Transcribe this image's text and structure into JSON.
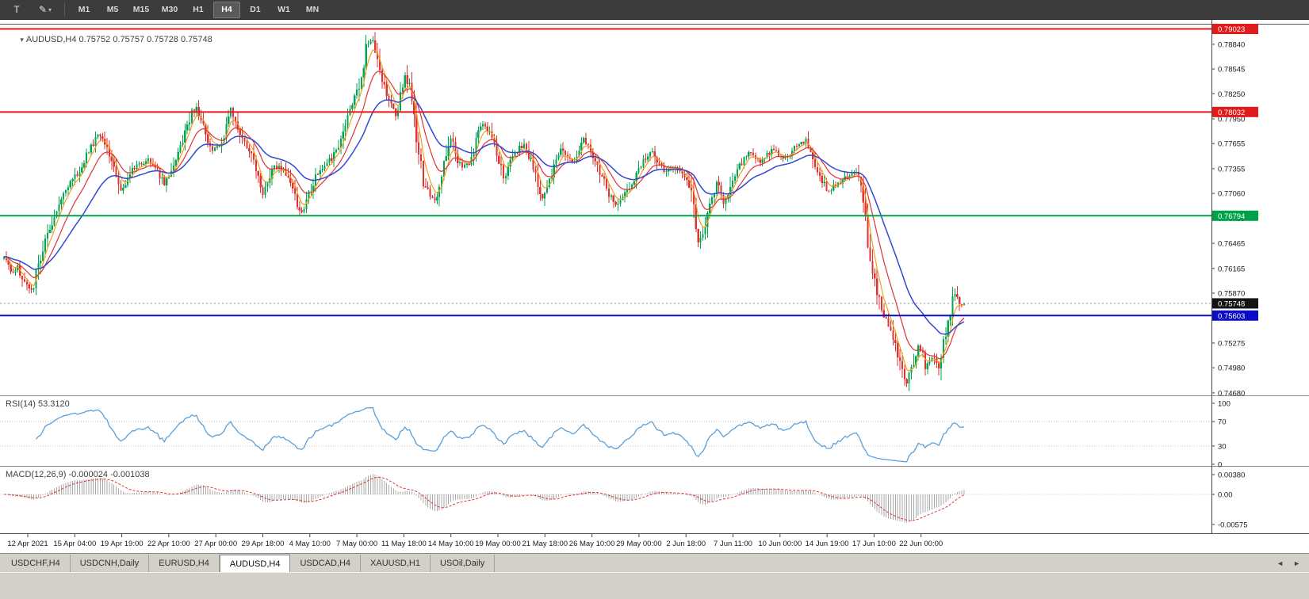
{
  "toolbar": {
    "tools": [
      {
        "name": "text-tool",
        "glyph": "T"
      },
      {
        "name": "draw-tool",
        "glyph": "✎",
        "caret": "▾"
      }
    ],
    "timeframes": [
      "M1",
      "M5",
      "M15",
      "M30",
      "H1",
      "H4",
      "D1",
      "W1",
      "MN"
    ],
    "active_timeframe": "H4"
  },
  "header": {
    "collapse_glyph": "▾",
    "symbol": "AUDUSD,H4",
    "ohlc": "0.75752 0.75757 0.75728 0.75748"
  },
  "chart_data": {
    "type": "candlestick",
    "symbol": "AUDUSD",
    "timeframe": "H4",
    "main": {
      "candle_count": 420,
      "price_min": 0.7466,
      "price_max": 0.79075,
      "bull_color": "#00a650",
      "bear_color": "#e03232",
      "y_ticks": [
        "0.78840",
        "0.78545",
        "0.78250",
        "0.77950",
        "0.77655",
        "0.77355",
        "0.77060",
        "0.76765",
        "0.76465",
        "0.76165",
        "0.75870",
        "0.75575",
        "0.75275",
        "0.74980",
        "0.74680"
      ],
      "levels": [
        {
          "price": 0.79023,
          "label": "0.79023",
          "color": "#e11b1b",
          "kind": "resistance"
        },
        {
          "price": 0.78032,
          "label": "0.78032",
          "color": "#e11b1b",
          "kind": "resistance"
        },
        {
          "price": 0.76794,
          "label": "0.76794",
          "color": "#00a14b",
          "kind": "support"
        },
        {
          "price": 0.75603,
          "label": "0.75603",
          "color": "#0c0cc4",
          "kind": "support"
        }
      ],
      "current_price": {
        "value": 0.75748,
        "label": "0.75748"
      },
      "moving_averages": [
        {
          "name": "fast",
          "period": 5,
          "color": "#f59e1b",
          "width": 1.2
        },
        {
          "name": "medium",
          "period": 13,
          "color": "#e03232",
          "width": 1.2
        },
        {
          "name": "slow",
          "period": 30,
          "color": "#2f49d0",
          "width": 1.5
        }
      ],
      "close_path": [
        [
          0,
          0.7628
        ],
        [
          4,
          0.7612
        ],
        [
          6,
          0.7618
        ],
        [
          9,
          0.76
        ],
        [
          12,
          0.7588
        ],
        [
          14,
          0.761
        ],
        [
          18,
          0.7652
        ],
        [
          22,
          0.768
        ],
        [
          25,
          0.77
        ],
        [
          29,
          0.7718
        ],
        [
          32,
          0.773
        ],
        [
          35,
          0.7745
        ],
        [
          38,
          0.7762
        ],
        [
          41,
          0.7776
        ],
        [
          44,
          0.7768
        ],
        [
          47,
          0.7745
        ],
        [
          51,
          0.7712
        ],
        [
          54,
          0.7722
        ],
        [
          56,
          0.7735
        ],
        [
          60,
          0.7742
        ],
        [
          63,
          0.7747
        ],
        [
          66,
          0.7738
        ],
        [
          70,
          0.7716
        ],
        [
          73,
          0.773
        ],
        [
          77,
          0.7762
        ],
        [
          80,
          0.7785
        ],
        [
          82,
          0.7802
        ],
        [
          84,
          0.7808
        ],
        [
          87,
          0.779
        ],
        [
          89,
          0.7768
        ],
        [
          91,
          0.7757
        ],
        [
          94,
          0.7762
        ],
        [
          96,
          0.7772
        ],
        [
          99,
          0.7808
        ],
        [
          101,
          0.7795
        ],
        [
          103,
          0.778
        ],
        [
          106,
          0.7762
        ],
        [
          108,
          0.7752
        ],
        [
          111,
          0.7725
        ],
        [
          113,
          0.7706
        ],
        [
          116,
          0.7726
        ],
        [
          118,
          0.774
        ],
        [
          121,
          0.7735
        ],
        [
          123,
          0.773
        ],
        [
          126,
          0.7712
        ],
        [
          128,
          0.7694
        ],
        [
          130,
          0.7683
        ],
        [
          133,
          0.7706
        ],
        [
          136,
          0.7726
        ],
        [
          139,
          0.7735
        ],
        [
          141,
          0.7741
        ],
        [
          144,
          0.7752
        ],
        [
          146,
          0.7762
        ],
        [
          149,
          0.7788
        ],
        [
          151,
          0.7802
        ],
        [
          153,
          0.7818
        ],
        [
          155,
          0.7832
        ],
        [
          157,
          0.7862
        ],
        [
          158,
          0.788
        ],
        [
          160,
          0.7888
        ],
        [
          161,
          0.7885
        ],
        [
          163,
          0.7862
        ],
        [
          164,
          0.7848
        ],
        [
          166,
          0.7832
        ],
        [
          168,
          0.782
        ],
        [
          171,
          0.78
        ],
        [
          173,
          0.7824
        ],
        [
          175,
          0.7848
        ],
        [
          177,
          0.783
        ],
        [
          179,
          0.7792
        ],
        [
          181,
          0.776
        ],
        [
          183,
          0.7722
        ],
        [
          186,
          0.7702
        ],
        [
          188,
          0.7698
        ],
        [
          191,
          0.7726
        ],
        [
          193,
          0.7752
        ],
        [
          195,
          0.777
        ],
        [
          198,
          0.7746
        ],
        [
          200,
          0.7738
        ],
        [
          203,
          0.774
        ],
        [
          206,
          0.7768
        ],
        [
          208,
          0.779
        ],
        [
          210,
          0.7788
        ],
        [
          213,
          0.7775
        ],
        [
          215,
          0.7755
        ],
        [
          218,
          0.7726
        ],
        [
          220,
          0.7736
        ],
        [
          222,
          0.775
        ],
        [
          225,
          0.776
        ],
        [
          227,
          0.7765
        ],
        [
          229,
          0.7752
        ],
        [
          231,
          0.7736
        ],
        [
          233,
          0.7716
        ],
        [
          235,
          0.7702
        ],
        [
          238,
          0.772
        ],
        [
          240,
          0.7736
        ],
        [
          243,
          0.776
        ],
        [
          245,
          0.7752
        ],
        [
          248,
          0.7744
        ],
        [
          250,
          0.775
        ],
        [
          253,
          0.7772
        ],
        [
          255,
          0.776
        ],
        [
          258,
          0.7744
        ],
        [
          260,
          0.773
        ],
        [
          263,
          0.7714
        ],
        [
          265,
          0.77
        ],
        [
          267,
          0.7692
        ],
        [
          270,
          0.7702
        ],
        [
          273,
          0.7714
        ],
        [
          276,
          0.7728
        ],
        [
          278,
          0.774
        ],
        [
          281,
          0.7752
        ],
        [
          283,
          0.7756
        ],
        [
          286,
          0.7742
        ],
        [
          288,
          0.773
        ],
        [
          291,
          0.7736
        ],
        [
          293,
          0.7734
        ],
        [
          296,
          0.7728
        ],
        [
          299,
          0.7718
        ],
        [
          301,
          0.769
        ],
        [
          303,
          0.765
        ],
        [
          305,
          0.766
        ],
        [
          307,
          0.7682
        ],
        [
          309,
          0.7702
        ],
        [
          311,
          0.772
        ],
        [
          314,
          0.7695
        ],
        [
          316,
          0.7705
        ],
        [
          319,
          0.773
        ],
        [
          322,
          0.7742
        ],
        [
          325,
          0.7754
        ],
        [
          328,
          0.7748
        ],
        [
          330,
          0.7744
        ],
        [
          333,
          0.7752
        ],
        [
          335,
          0.776
        ],
        [
          338,
          0.7752
        ],
        [
          340,
          0.7746
        ],
        [
          343,
          0.7752
        ],
        [
          345,
          0.776
        ],
        [
          348,
          0.7766
        ],
        [
          350,
          0.777
        ],
        [
          352,
          0.7758
        ],
        [
          354,
          0.7736
        ],
        [
          357,
          0.7722
        ],
        [
          359,
          0.771
        ],
        [
          361,
          0.7712
        ],
        [
          363,
          0.7716
        ],
        [
          366,
          0.7722
        ],
        [
          368,
          0.7726
        ],
        [
          370,
          0.7728
        ],
        [
          372,
          0.773
        ],
        [
          374,
          0.7712
        ],
        [
          375,
          0.77
        ],
        [
          377,
          0.764
        ],
        [
          379,
          0.7615
        ],
        [
          380,
          0.76
        ],
        [
          382,
          0.7578
        ],
        [
          383,
          0.7565
        ],
        [
          385,
          0.7556
        ],
        [
          387,
          0.7545
        ],
        [
          389,
          0.7528
        ],
        [
          390,
          0.751
        ],
        [
          392,
          0.7492
        ],
        [
          394,
          0.7478
        ],
        [
          396,
          0.7495
        ],
        [
          397,
          0.7505
        ],
        [
          399,
          0.7525
        ],
        [
          401,
          0.7512
        ],
        [
          402,
          0.75
        ],
        [
          404,
          0.7506
        ],
        [
          405,
          0.751
        ],
        [
          407,
          0.7502
        ],
        [
          408,
          0.7495
        ],
        [
          410,
          0.753
        ],
        [
          412,
          0.7548
        ],
        [
          413,
          0.756
        ],
        [
          415,
          0.759
        ],
        [
          417,
          0.7578
        ],
        [
          418,
          0.7572
        ],
        [
          419,
          0.75748
        ]
      ]
    },
    "rsi": {
      "label": "RSI(14) 53.3120",
      "period": 14,
      "current": 53.312,
      "ticks": [
        "100",
        "70",
        "30",
        "0"
      ],
      "levels": [
        70,
        30
      ],
      "color": "#5b9fd8"
    },
    "macd": {
      "label": "MACD(12,26,9) -0.000024 -0.001038",
      "params": "12,26,9",
      "macd_current": -2.4e-05,
      "signal_current": -0.001038,
      "ticks": [
        "0.00380",
        "0.00",
        "-0.00575"
      ],
      "hist_color": "#a9a9a9",
      "signal_color": "#e03232"
    },
    "x_labels": [
      "12 Apr 2021",
      "15 Apr 04:00",
      "19 Apr 19:00",
      "22 Apr 10:00",
      "27 Apr 00:00",
      "29 Apr 18:00",
      "4 May 10:00",
      "7 May 00:00",
      "11 May 18:00",
      "14 May 10:00",
      "19 May 00:00",
      "21 May 18:00",
      "26 May 10:00",
      "29 May 00:00",
      "2 Jun 18:00",
      "7 Jun 11:00",
      "10 Jun 00:00",
      "14 Jun 19:00",
      "17 Jun 10:00",
      "22 Jun 00:00"
    ]
  },
  "tabbar": {
    "tabs": [
      {
        "label": "USDCHF,H4",
        "active": false
      },
      {
        "label": "USDCNH,Daily",
        "active": false
      },
      {
        "label": "EURUSD,H4",
        "active": false
      },
      {
        "label": "AUDUSD,H4",
        "active": true
      },
      {
        "label": "USDCAD,H4",
        "active": false
      },
      {
        "label": "XAUUSD,H1",
        "active": false
      },
      {
        "label": "USOil,Daily",
        "active": false
      }
    ],
    "scroll_left": "◄",
    "scroll_right": "►"
  }
}
